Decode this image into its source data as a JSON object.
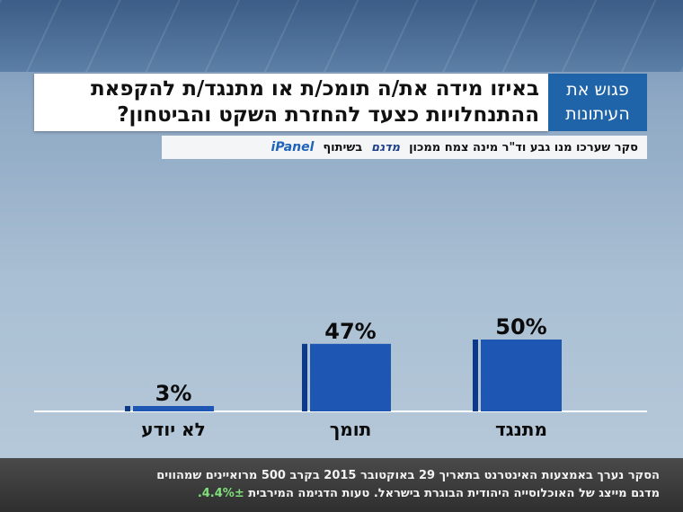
{
  "title_lines": [
    "באיזו מידה את/ה תומכ/ת או מתנגד/ת להקפאת",
    "ההתנחלויות כצעד להחזרת השקט והביטחון?"
  ],
  "program_logo": [
    "פגוש את",
    "העיתונות"
  ],
  "credit": {
    "text": "סקר שערכו מנו גבע וד\"ר מינה צמח ממכון",
    "partner1": "מדגם",
    "collab": "בשיתוף",
    "partner2": "iPanel"
  },
  "footnote": {
    "line1": "הסקר נערך באמצעות האינטרנט בתאריך 29 באוקטובר 2015 בקרב 500 מרואיינים שמהווים",
    "line2_text": "מדגם מייצג של האוכלוסייה היהודית הבוגרת בישראל. טעות הדגימה המירבית ",
    "line2_value": "4.4%±."
  },
  "colors": {
    "bar": "#1e56b3",
    "bar_edge": "#0d3a88",
    "accent_green": "#7fe07a",
    "logo_bg": "#1f63a9"
  },
  "chart_data": {
    "type": "bar",
    "categories": [
      "מתנגד",
      "תומך",
      "לא יודע"
    ],
    "values": [
      50,
      47,
      3
    ],
    "value_labels": [
      "50%",
      "47%",
      "3%"
    ],
    "ylim": [
      0,
      100
    ],
    "grid": false,
    "legend": "none"
  }
}
